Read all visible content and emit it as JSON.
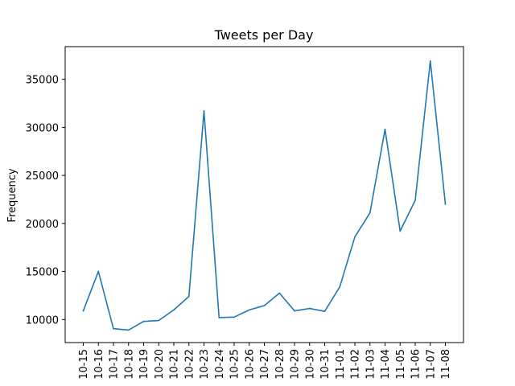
{
  "chart_data": {
    "type": "line",
    "title": "Tweets per Day",
    "xlabel": "",
    "ylabel": "Frequency",
    "categories": [
      "10-15",
      "10-16",
      "10-17",
      "10-18",
      "10-19",
      "10-20",
      "10-21",
      "10-22",
      "10-23",
      "10-24",
      "10-25",
      "10-26",
      "10-27",
      "10-28",
      "10-29",
      "10-30",
      "10-31",
      "11-01",
      "11-02",
      "11-03",
      "11-04",
      "11-05",
      "11-06",
      "11-07",
      "11-08"
    ],
    "series": [
      {
        "color": "#1f77b4",
        "values": [
          10900,
          15000,
          9050,
          8900,
          9800,
          9900,
          11000,
          12400,
          31700,
          10200,
          10250,
          11000,
          11450,
          12750,
          10900,
          11150,
          10850,
          13400,
          18600,
          21100,
          29800,
          19200,
          22400,
          36900,
          22000
        ]
      }
    ],
    "yticks": [
      10000,
      15000,
      20000,
      25000,
      30000,
      35000
    ],
    "ylim": [
      7600,
      38400
    ],
    "grid": false
  }
}
